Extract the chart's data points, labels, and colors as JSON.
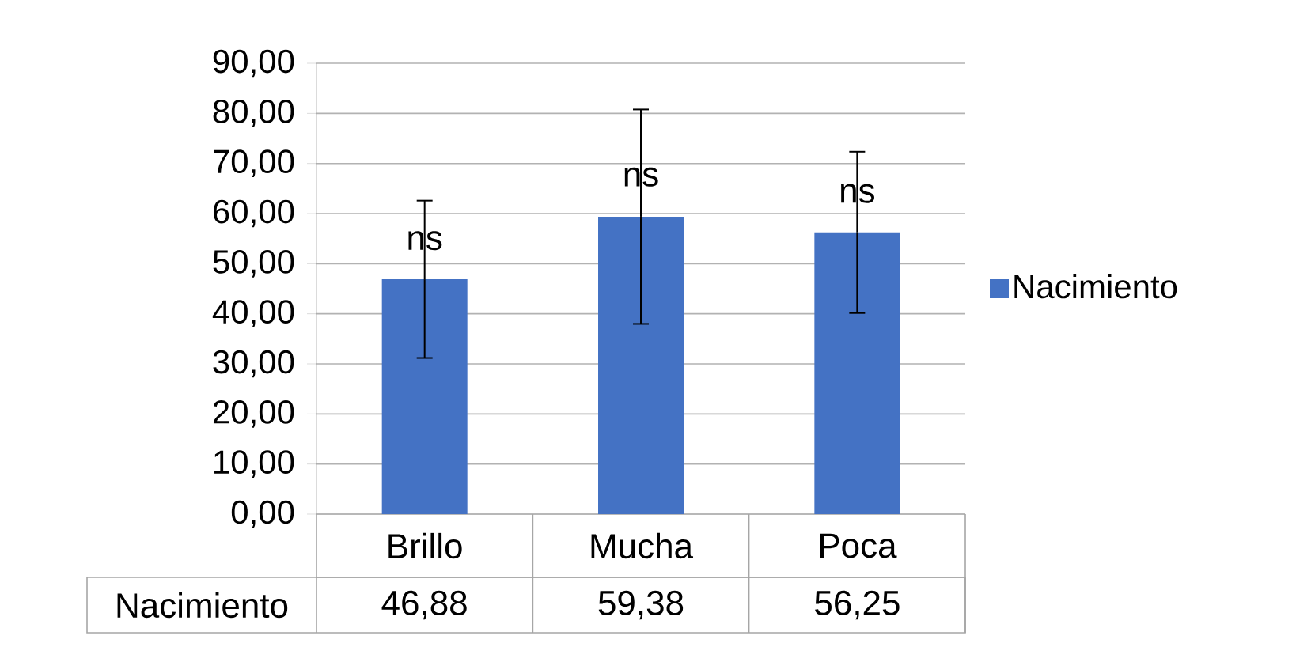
{
  "chart_data": {
    "type": "bar",
    "categories": [
      "Brillo",
      "Mucha",
      "Poca"
    ],
    "series": [
      {
        "name": "Nacimiento",
        "color": "#4472c4",
        "values": [
          46.88,
          59.38,
          56.25
        ],
        "errors": [
          15.7,
          21.4,
          16.1
        ]
      }
    ],
    "ylim": [
      0,
      90
    ],
    "yticks": [
      {
        "value": 0,
        "label": "0,00"
      },
      {
        "value": 10,
        "label": "10,00"
      },
      {
        "value": 20,
        "label": "20,00"
      },
      {
        "value": 30,
        "label": "30,00"
      },
      {
        "value": 40,
        "label": "40,00"
      },
      {
        "value": 50,
        "label": "50,00"
      },
      {
        "value": 60,
        "label": "60,00"
      },
      {
        "value": 70,
        "label": "70,00"
      },
      {
        "value": 80,
        "label": "80,00"
      },
      {
        "value": 90,
        "label": "90,00"
      }
    ],
    "value_labels": [
      "46,88",
      "59,38",
      "56,25"
    ],
    "annotations": [
      {
        "text": "ns",
        "x": "Brillo",
        "y": 54.6
      },
      {
        "text": "ns",
        "x": "Mucha",
        "y": 67.3
      },
      {
        "text": "ns",
        "x": "Poca",
        "y": 64
      }
    ],
    "grid": "y",
    "legend": "right"
  }
}
